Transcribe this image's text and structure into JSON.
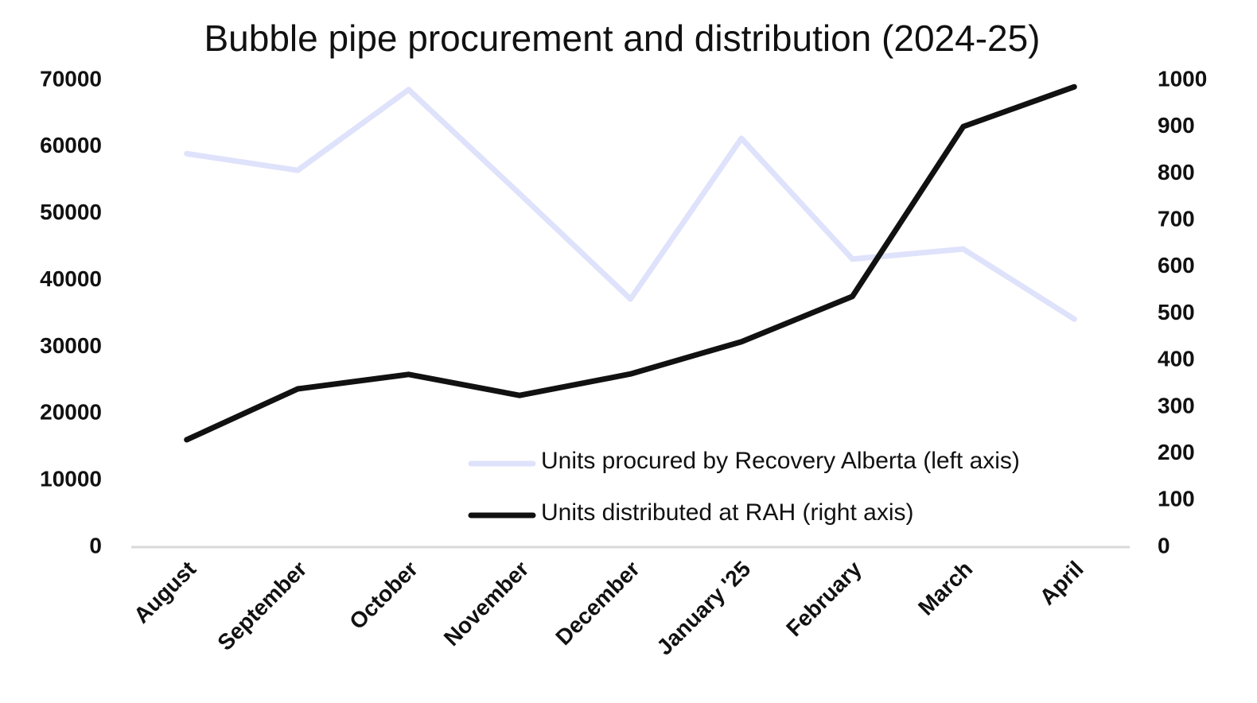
{
  "chart_data": {
    "type": "line",
    "title": "Bubble pipe procurement and distribution (2024-25)",
    "categories": [
      "August",
      "September",
      "October",
      "November",
      "December",
      "January '25",
      "February",
      "March",
      "April"
    ],
    "series": [
      {
        "name": "Units procured by Recovery Alberta (left axis)",
        "color": "#dfe2fb",
        "values": [
          59000,
          56500,
          68600,
          53000,
          37200,
          61300,
          43200,
          44700,
          34200
        ]
      },
      {
        "name": "Units distributed at RAH (right axis)",
        "color": "#111111",
        "axis": "y2",
        "values": [
          230,
          339,
          370,
          325,
          371,
          440,
          537,
          901,
          986
        ]
      }
    ],
    "ylim": [
      0,
      70000
    ],
    "yticks": [
      0,
      10000,
      20000,
      30000,
      40000,
      50000,
      60000,
      70000
    ],
    "y2lim": [
      0,
      1000
    ],
    "y2ticks": [
      0,
      100,
      200,
      300,
      400,
      500,
      600,
      700,
      800,
      900,
      1000
    ],
    "grid": false
  }
}
